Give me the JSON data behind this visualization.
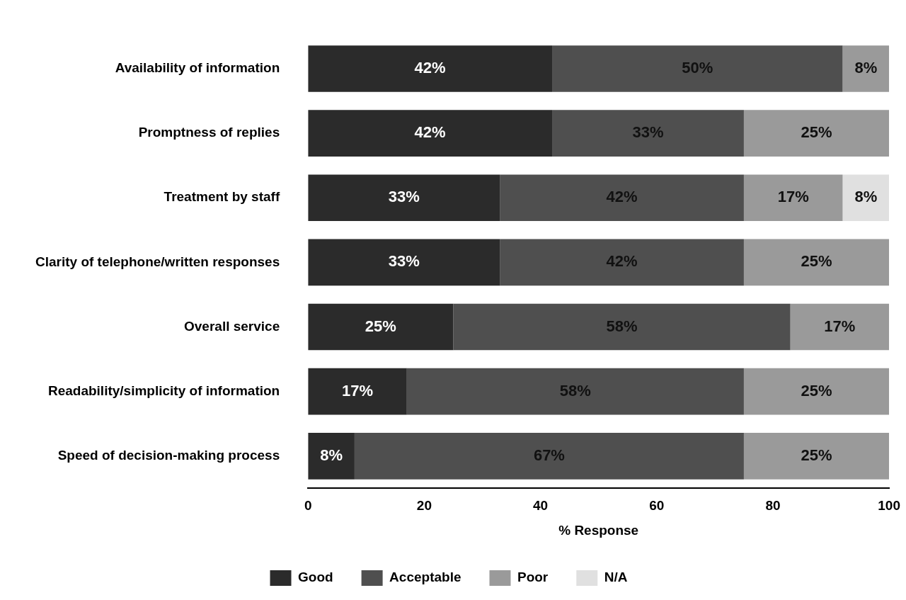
{
  "chart_data": {
    "type": "bar",
    "orientation": "horizontal",
    "stacked": true,
    "xlabel": "% Response",
    "categories": [
      "Availability of information",
      "Promptness of replies",
      "Treatment by staff",
      "Clarity of telephone/written responses",
      "Overall service",
      "Readability/simplicity of information",
      "Speed of decision-making process"
    ],
    "series": [
      {
        "name": "Good",
        "color": "#2b2b2b",
        "values": [
          42,
          42,
          33,
          33,
          25,
          17,
          8
        ],
        "value_labels": [
          "42%",
          "42%",
          "33%",
          "33%",
          "25%",
          "17%",
          "8%"
        ]
      },
      {
        "name": "Acceptable",
        "color": "#4f4f4f",
        "values": [
          50,
          33,
          42,
          42,
          58,
          58,
          67
        ],
        "value_labels": [
          "50%",
          "33%",
          "42%",
          "42%",
          "58%",
          "58%",
          "67%"
        ]
      },
      {
        "name": "Poor",
        "color": "#9a9a9a",
        "values": [
          8,
          25,
          17,
          25,
          17,
          25,
          25
        ],
        "value_labels": [
          "8%",
          "25%",
          "17%",
          "25%",
          "17%",
          "25%",
          "25%"
        ]
      },
      {
        "name": "N/A",
        "color": "#e0e0e0",
        "values": [
          null,
          null,
          8,
          null,
          null,
          null,
          null
        ],
        "value_labels": [
          null,
          null,
          "8%",
          null,
          null,
          null,
          null
        ]
      }
    ],
    "xlim": [
      0,
      100
    ],
    "xticks": [
      0,
      20,
      40,
      60,
      80,
      100
    ],
    "grid": false,
    "legend": "bottom"
  }
}
